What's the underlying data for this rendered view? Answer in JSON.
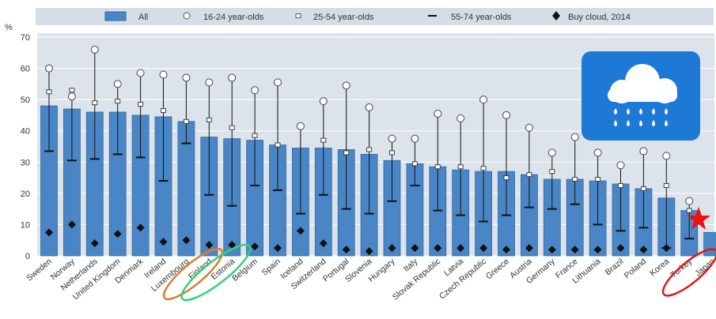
{
  "legend": {
    "all": "All",
    "age_16_24": "16-24 year-olds",
    "age_25_54": "25-54 year-olds",
    "age_55_74": "55-74 year-olds",
    "buy_cloud": "Buy cloud, 2014"
  },
  "colors": {
    "bar": "#4a86c5",
    "bar_edge": "#2f6aa6",
    "plot_bg": "#dde3ea",
    "legend_bg": "#d6dde6",
    "icon_bg": "#1d78d6",
    "highlight_orange": "#e07a2a",
    "highlight_green": "#2fd37a",
    "highlight_red": "#e01818",
    "star": "#ee1111"
  },
  "icon": "cloud-rain-icon",
  "chart_data": {
    "type": "bar",
    "ylabel": "%",
    "ylim": [
      0,
      70
    ],
    "yticks": [
      0,
      10,
      20,
      30,
      40,
      50,
      60,
      70
    ],
    "grid": true,
    "legend_position": "top",
    "categories": [
      "Sweden",
      "Norway",
      "Netherlands",
      "United Kingdom",
      "Denmark",
      "Ireland",
      "Luxembourg",
      "Finland",
      "Estonia",
      "Belgium",
      "Spain",
      "Iceland",
      "Switzerland",
      "Portugal",
      "Slovenia",
      "Hungary",
      "Italy",
      "Slovak Republic",
      "Latvia",
      "Czech Republic",
      "Greece",
      "Austria",
      "Germany",
      "France",
      "Lithuania",
      "Brazil",
      "Poland",
      "Korea",
      "Turkey",
      "Japan"
    ],
    "series": [
      {
        "name": "All",
        "values": [
          48,
          47,
          46,
          46,
          45,
          44.5,
          43,
          38,
          37.5,
          37,
          35.5,
          34.5,
          34.5,
          34,
          32.5,
          30.5,
          29.5,
          28.5,
          27.5,
          27,
          27,
          26,
          24.5,
          24.5,
          24,
          23,
          21.5,
          18.5,
          14.5,
          7.5
        ]
      },
      {
        "name": "16-24 year-olds",
        "values": [
          60,
          51,
          66,
          55,
          58.5,
          58,
          57,
          55.5,
          57,
          53,
          55.5,
          41.5,
          49.5,
          54.5,
          47.5,
          37.5,
          37.5,
          45.5,
          44,
          50,
          45,
          41,
          33,
          38,
          33,
          29,
          33.5,
          32,
          17.5,
          null
        ]
      },
      {
        "name": "25-54 year-olds",
        "values": [
          52.5,
          53,
          49,
          49.5,
          48.5,
          46.5,
          43,
          43.5,
          41,
          38.5,
          35.5,
          41.5,
          37,
          33,
          34,
          33,
          29.5,
          28.5,
          28.5,
          28,
          25,
          26,
          27,
          24.5,
          24.5,
          22.5,
          21.5,
          22.5,
          14.5,
          null
        ]
      },
      {
        "name": "55-74 year-olds",
        "values": [
          33.5,
          30.5,
          31,
          32.5,
          31.5,
          24,
          36,
          19.5,
          16,
          22.5,
          21,
          13.5,
          19.5,
          15,
          13.5,
          17.5,
          22.5,
          14.5,
          13,
          11,
          13,
          15.5,
          15,
          16.5,
          10,
          8,
          9,
          2.5,
          5.5,
          null
        ]
      },
      {
        "name": "Buy cloud, 2014",
        "values": [
          7.5,
          10,
          4,
          7,
          9,
          4.5,
          5,
          3.5,
          3.5,
          3,
          2.5,
          8,
          4,
          2,
          1.5,
          2.5,
          2.5,
          2.5,
          2.5,
          2.5,
          2,
          2.5,
          2,
          2,
          2,
          2.5,
          2,
          2.5,
          null,
          null
        ]
      }
    ]
  }
}
